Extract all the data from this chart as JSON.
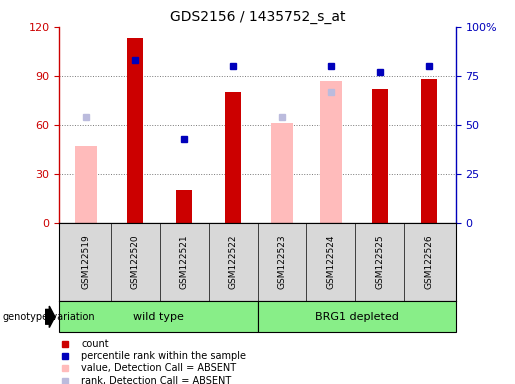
{
  "title": "GDS2156 / 1435752_s_at",
  "samples": [
    "GSM122519",
    "GSM122520",
    "GSM122521",
    "GSM122522",
    "GSM122523",
    "GSM122524",
    "GSM122525",
    "GSM122526"
  ],
  "count_values": [
    null,
    113,
    20,
    80,
    null,
    null,
    82,
    88
  ],
  "rank_values": [
    null,
    83,
    43,
    80,
    null,
    80,
    77,
    80
  ],
  "absent_value": [
    47,
    null,
    null,
    null,
    61,
    87,
    null,
    null
  ],
  "absent_rank": [
    65,
    null,
    null,
    null,
    65,
    80,
    null,
    null
  ],
  "ylim_left": [
    0,
    120
  ],
  "ylim_right": [
    0,
    100
  ],
  "yticks_left": [
    0,
    30,
    60,
    90,
    120
  ],
  "ytick_right_labels": [
    "0",
    "25",
    "50",
    "75",
    "100%"
  ],
  "yticks_right": [
    0,
    25,
    50,
    75,
    100
  ],
  "group_labels": [
    "wild type",
    "BRG1 depleted"
  ],
  "bar_color_count": "#cc0000",
  "bar_color_rank": "#0000bb",
  "bar_color_absent_value": "#ffbbbb",
  "bar_color_absent_rank": "#bbbbdd",
  "bg_color": "#d8d8d8",
  "grid_color": "#777777",
  "green_color": "#88ee88",
  "legend_items": [
    "count",
    "percentile rank within the sample",
    "value, Detection Call = ABSENT",
    "rank, Detection Call = ABSENT"
  ],
  "legend_colors": [
    "#cc0000",
    "#0000bb",
    "#ffbbbb",
    "#bbbbdd"
  ],
  "absent_rank_marker_size": 5,
  "rank_marker_size": 5
}
